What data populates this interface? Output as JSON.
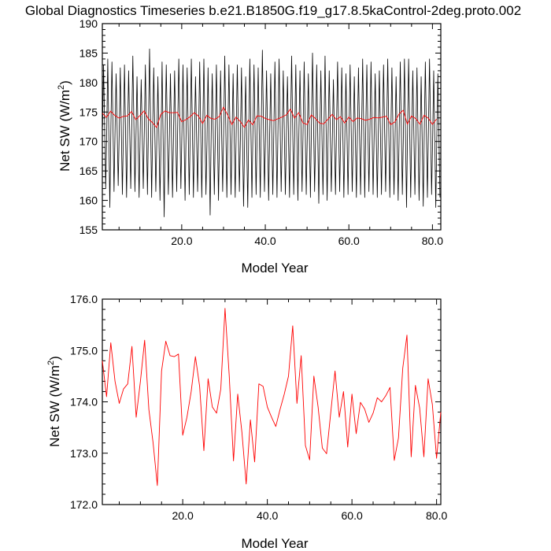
{
  "page": {
    "title": "Global Diagnostics Timeseries b.e21.B1850G.f19_g17.8.5kaControl-2deg.proto.002"
  },
  "colors": {
    "monthly_line": "#000000",
    "annual_line": "#ff0000",
    "axis": "#000000"
  },
  "chart_data": [
    {
      "type": "line",
      "title": "",
      "xlabel": "Model Year",
      "ylabel_main": "Net SW (W/m",
      "ylabel_sup": "2",
      "ylabel_tail": ")",
      "xlim": [
        1,
        82
      ],
      "ylim": [
        155,
        190
      ],
      "xticks": [
        20,
        40,
        60,
        80
      ],
      "xtick_labels": [
        "20.0",
        "40.0",
        "60.0",
        "80.0"
      ],
      "yticks": [
        155,
        160,
        165,
        170,
        175,
        180,
        185,
        190
      ],
      "ytick_labels": [
        "155",
        "160",
        "165",
        "170",
        "175",
        "180",
        "185",
        "190"
      ],
      "grid": false,
      "series": [
        {
          "key": "monthly",
          "color": "#000000",
          "cycle_max": [
            183.0,
            184.0,
            183.5,
            181.5,
            182.5,
            183.0,
            182.0,
            184.5,
            181.0,
            180.5,
            183.0,
            185.7,
            182.5,
            181.0,
            183.5,
            183.0,
            181.5,
            182.0,
            184.0,
            183.0,
            182.5,
            184.0,
            181.0,
            183.5,
            184.0,
            182.5,
            181.5,
            183.0,
            182.0,
            184.5,
            183.0,
            181.5,
            183.0,
            182.5,
            181.0,
            184.0,
            183.0,
            182.5,
            185.5,
            182.0,
            181.5,
            183.5,
            184.0,
            182.0,
            181.0,
            184.5,
            183.0,
            182.0,
            183.5,
            181.5,
            185.0,
            183.0,
            182.0,
            184.5,
            182.0,
            180.5,
            183.5,
            182.5,
            181.5,
            183.0,
            181.0,
            182.5,
            184.0,
            183.0,
            183.5,
            181.5,
            182.0,
            183.0,
            184.0,
            182.5,
            181.0,
            183.5,
            184.0,
            184.0,
            182.0,
            182.5,
            181.0,
            183.5,
            184.0,
            182.0,
            181.5
          ],
          "cycle_min": [
            162.0,
            158.8,
            161.5,
            162.5,
            161.0,
            160.5,
            162.0,
            161.5,
            160.5,
            162.0,
            161.0,
            160.5,
            161.5,
            160.0,
            157.2,
            161.0,
            160.5,
            161.5,
            162.0,
            160.0,
            161.0,
            160.5,
            161.5,
            160.5,
            161.0,
            157.5,
            161.0,
            160.0,
            161.5,
            160.5,
            161.0,
            160.5,
            161.5,
            159.0,
            158.8,
            160.5,
            161.0,
            160.5,
            161.5,
            160.0,
            161.0,
            160.5,
            161.5,
            161.0,
            160.5,
            161.0,
            160.0,
            161.5,
            161.0,
            160.5,
            161.5,
            159.5,
            161.0,
            160.0,
            161.5,
            161.0,
            161.5,
            160.5,
            161.0,
            161.5,
            160.5,
            161.0,
            160.5,
            161.5,
            161.0,
            160.5,
            161.0,
            161.5,
            160.5,
            161.0,
            160.0,
            161.0,
            158.8,
            160.5,
            161.0,
            160.0,
            159.0,
            160.5,
            161.0,
            158.8,
            160.5
          ]
        },
        {
          "key": "annual",
          "color": "#ff0000",
          "x": [
            1,
            2,
            3,
            4,
            5,
            6,
            7,
            8,
            9,
            10,
            11,
            12,
            13,
            14,
            15,
            16,
            17,
            18,
            19,
            20,
            21,
            22,
            23,
            24,
            25,
            26,
            27,
            28,
            29,
            30,
            31,
            32,
            33,
            34,
            35,
            36,
            37,
            38,
            39,
            40,
            41,
            42,
            43,
            44,
            45,
            46,
            47,
            48,
            49,
            50,
            51,
            52,
            53,
            54,
            55,
            56,
            57,
            58,
            59,
            60,
            61,
            62,
            63,
            64,
            65,
            66,
            67,
            68,
            69,
            70,
            71,
            72,
            73,
            74,
            75,
            76,
            77,
            78,
            79,
            80,
            81
          ],
          "y": [
            174.8,
            174.1,
            175.15,
            174.4,
            173.97,
            174.25,
            174.35,
            175.08,
            173.7,
            174.4,
            175.2,
            173.85,
            173.2,
            172.37,
            174.6,
            175.18,
            174.9,
            174.88,
            174.93,
            173.35,
            173.7,
            174.2,
            174.88,
            174.3,
            173.05,
            174.45,
            173.9,
            173.78,
            174.25,
            175.82,
            174.5,
            172.85,
            174.15,
            173.4,
            172.4,
            173.65,
            172.83,
            174.35,
            174.3,
            173.9,
            173.7,
            173.52,
            173.85,
            174.15,
            174.5,
            175.48,
            173.97,
            174.9,
            173.15,
            172.87,
            174.5,
            173.9,
            173.1,
            172.99,
            173.8,
            174.6,
            173.7,
            174.2,
            173.12,
            174.15,
            173.38,
            173.99,
            173.86,
            173.6,
            173.78,
            174.08,
            174.0,
            174.12,
            174.28,
            172.86,
            173.3,
            174.65,
            175.3,
            172.93,
            174.32,
            173.88,
            172.93,
            174.45,
            173.95,
            172.9,
            173.8
          ]
        }
      ]
    },
    {
      "type": "line",
      "title": "",
      "xlabel": "Model Year",
      "ylabel_main": "Net SW (W/m",
      "ylabel_sup": "2",
      "ylabel_tail": ")",
      "xlim": [
        1,
        81
      ],
      "ylim": [
        172.0,
        176.0
      ],
      "xticks": [
        20,
        40,
        60,
        80
      ],
      "xtick_labels": [
        "20.0",
        "40.0",
        "60.0",
        "80.0"
      ],
      "yticks": [
        172,
        173,
        174,
        175,
        176
      ],
      "ytick_labels": [
        "172.0",
        "173.0",
        "174.0",
        "175.0",
        "176.0"
      ],
      "grid": false,
      "series": [
        {
          "key": "annual",
          "color": "#ff0000",
          "x": [
            1,
            2,
            3,
            4,
            5,
            6,
            7,
            8,
            9,
            10,
            11,
            12,
            13,
            14,
            15,
            16,
            17,
            18,
            19,
            20,
            21,
            22,
            23,
            24,
            25,
            26,
            27,
            28,
            29,
            30,
            31,
            32,
            33,
            34,
            35,
            36,
            37,
            38,
            39,
            40,
            41,
            42,
            43,
            44,
            45,
            46,
            47,
            48,
            49,
            50,
            51,
            52,
            53,
            54,
            55,
            56,
            57,
            58,
            59,
            60,
            61,
            62,
            63,
            64,
            65,
            66,
            67,
            68,
            69,
            70,
            71,
            72,
            73,
            74,
            75,
            76,
            77,
            78,
            79,
            80,
            81
          ],
          "y": [
            174.8,
            174.1,
            175.15,
            174.4,
            173.97,
            174.25,
            174.35,
            175.08,
            173.7,
            174.4,
            175.2,
            173.85,
            173.2,
            172.37,
            174.6,
            175.18,
            174.9,
            174.88,
            174.93,
            173.35,
            173.7,
            174.2,
            174.88,
            174.3,
            173.05,
            174.45,
            173.9,
            173.78,
            174.25,
            175.82,
            174.5,
            172.85,
            174.15,
            173.4,
            172.4,
            173.65,
            172.83,
            174.35,
            174.3,
            173.9,
            173.7,
            173.52,
            173.85,
            174.15,
            174.5,
            175.48,
            173.97,
            174.9,
            173.15,
            172.87,
            174.5,
            173.9,
            173.1,
            172.99,
            173.8,
            174.6,
            173.7,
            174.2,
            173.12,
            174.15,
            173.38,
            173.99,
            173.86,
            173.6,
            173.78,
            174.08,
            174.0,
            174.12,
            174.28,
            172.86,
            173.3,
            174.65,
            175.3,
            172.93,
            174.32,
            173.88,
            172.93,
            174.45,
            173.95,
            172.9,
            173.8
          ]
        }
      ]
    }
  ]
}
